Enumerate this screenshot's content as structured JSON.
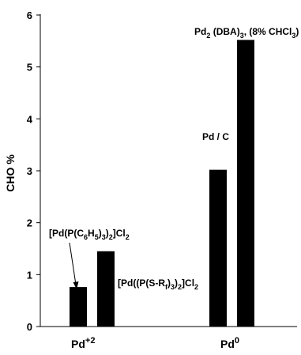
{
  "chart_data": {
    "type": "bar",
    "ylabel": "CHO %",
    "ylim": [
      0,
      6
    ],
    "yticks": [
      "0",
      "1",
      "2",
      "3",
      "4",
      "5",
      "6"
    ],
    "groups": [
      {
        "label_base": "Pd",
        "label_sup": "+2"
      },
      {
        "label_base": "Pd",
        "label_sup": "0"
      }
    ],
    "bars": [
      {
        "group": 0,
        "value": 0.76,
        "label": "[Pd(P(C6H5)3)2]Cl2"
      },
      {
        "group": 0,
        "value": 1.45,
        "label": "[Pd((P(S-Rf)3)2]Cl2"
      },
      {
        "group": 1,
        "value": 3.02,
        "label": "Pd / C"
      },
      {
        "group": 1,
        "value": 5.52,
        "label": "Pd2 (DBA)3, (8% CHCl3)"
      }
    ],
    "bar_color": "#000000"
  }
}
